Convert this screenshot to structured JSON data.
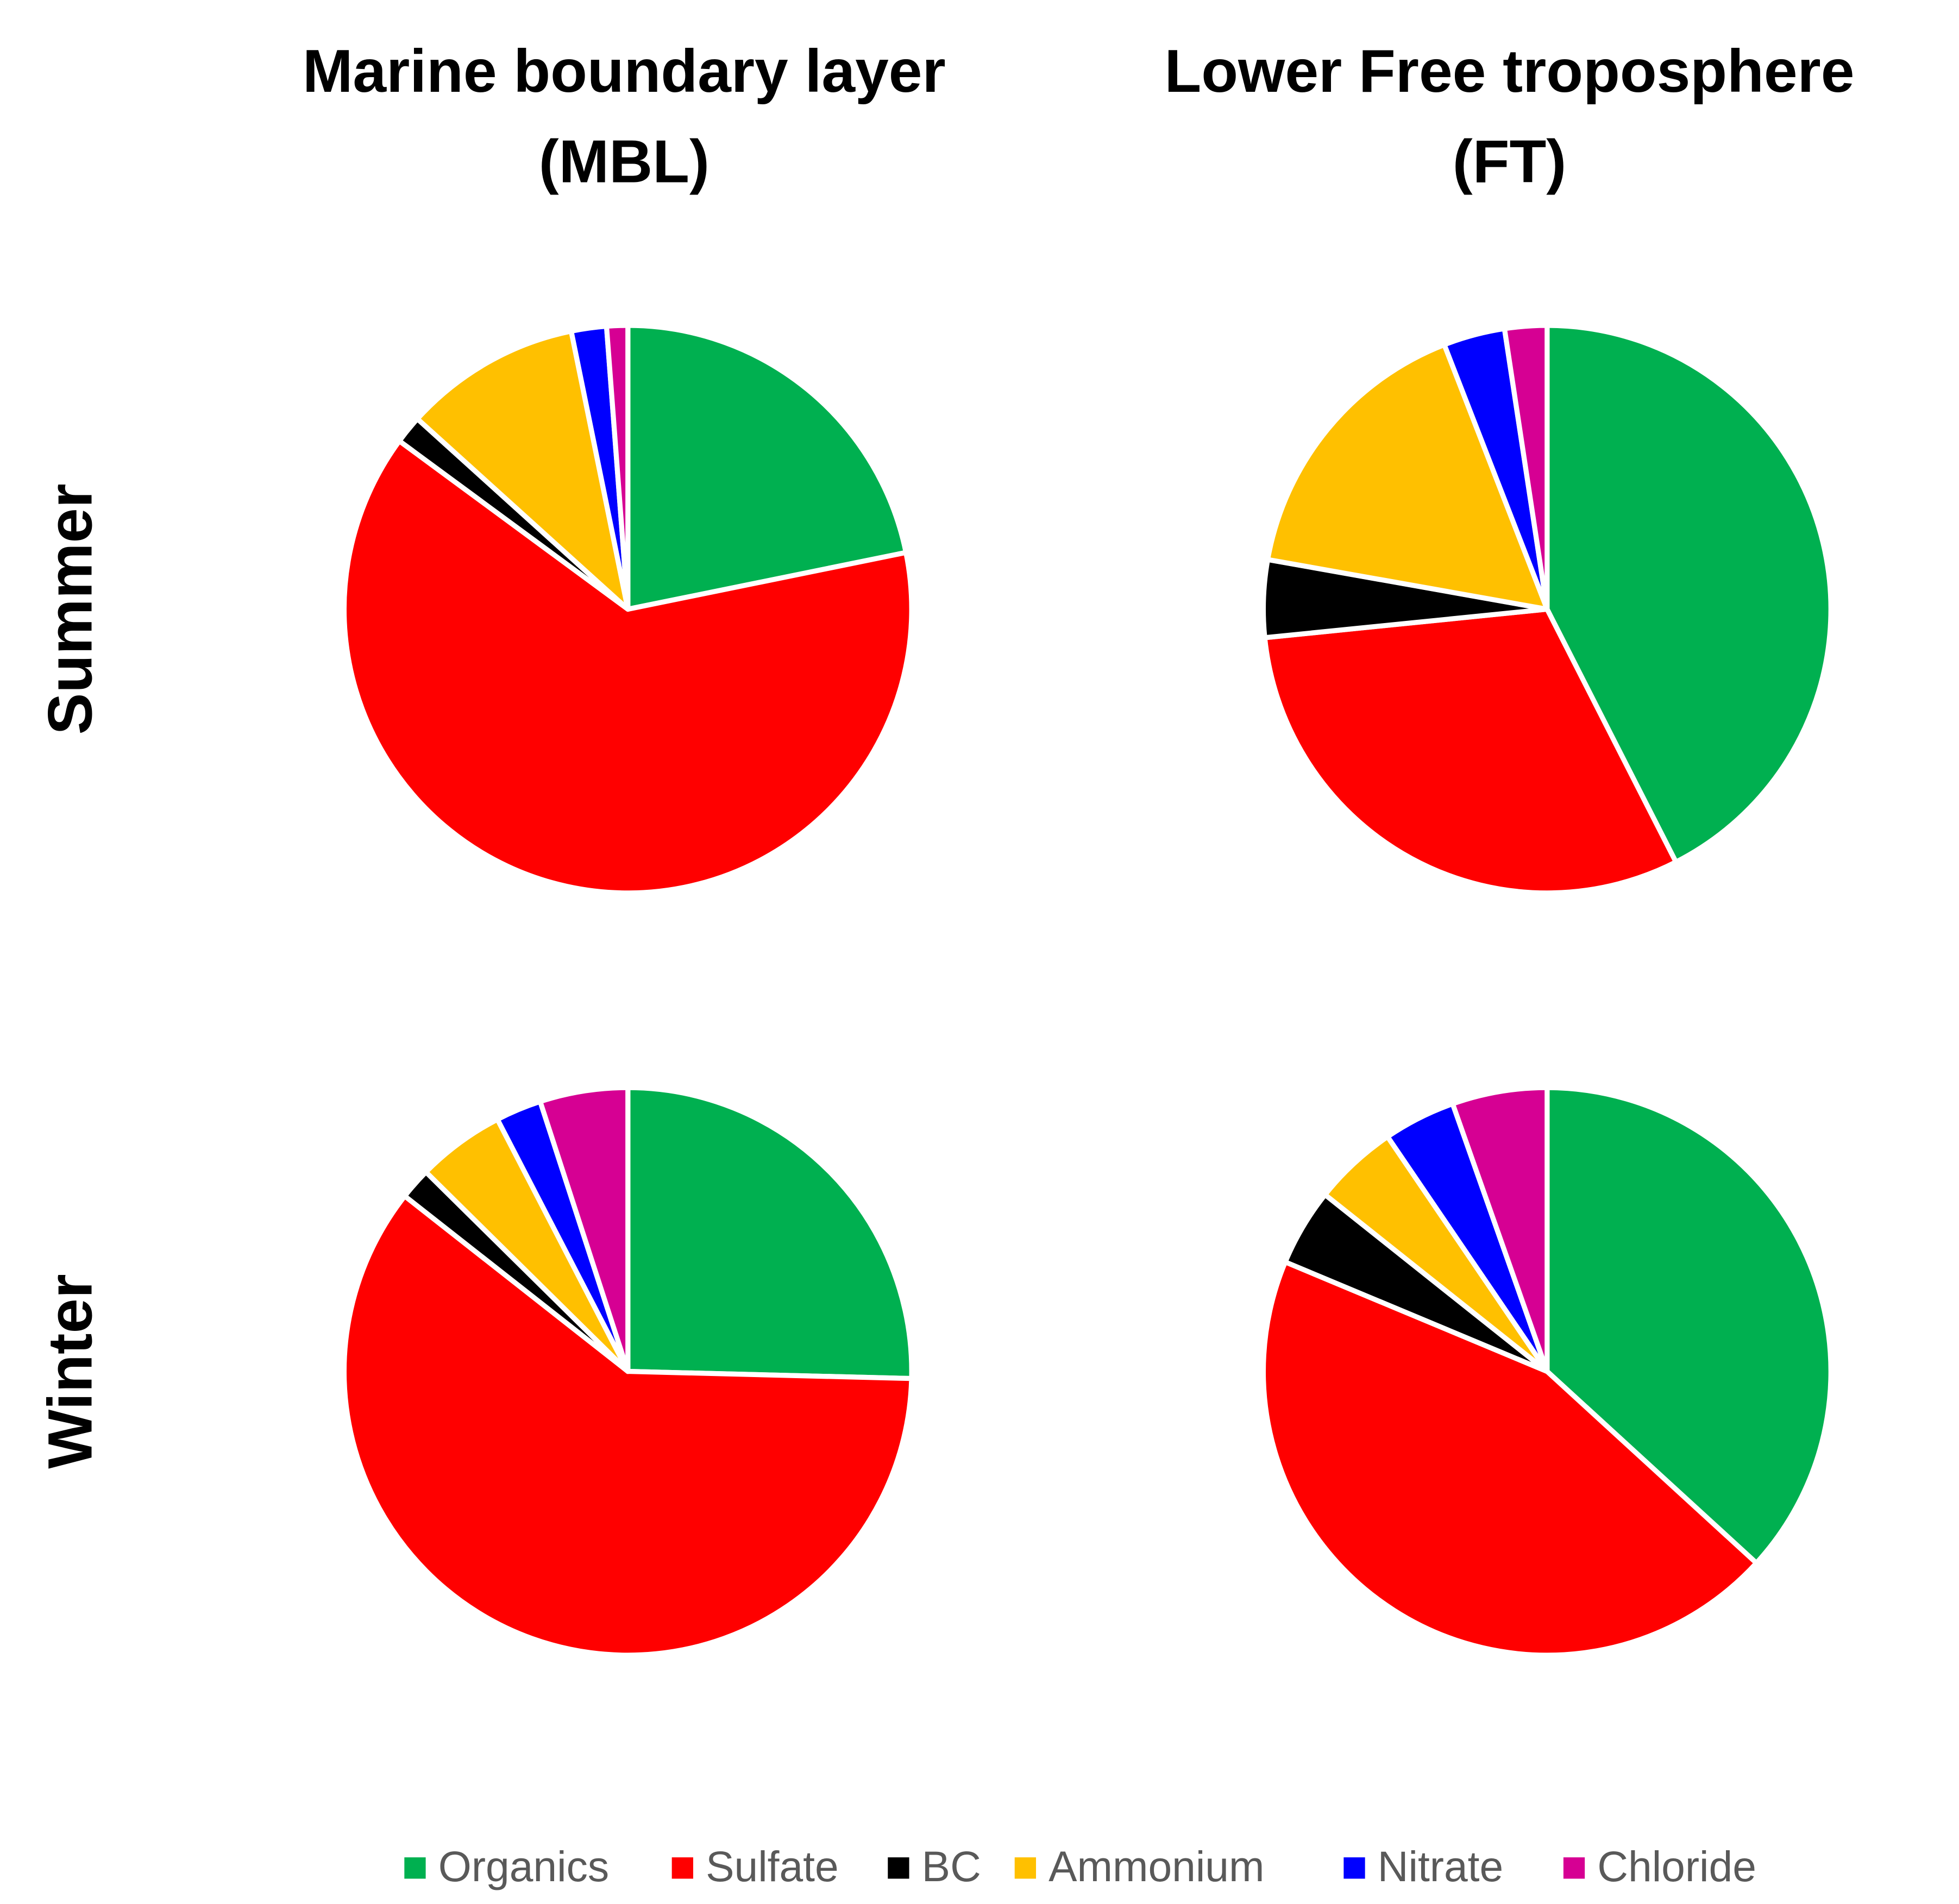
{
  "column_titles": [
    [
      "Marine boundary layer",
      "(MBL)"
    ],
    [
      "Lower Free troposphere",
      "(FT)"
    ]
  ],
  "row_labels": [
    "Summer",
    "Winter"
  ],
  "legend": {
    "categories": [
      "Organics",
      "Sulfate",
      "BC",
      "Ammonium",
      "Nitrate",
      "Chloride"
    ],
    "colors": [
      "#00b050",
      "#ff0000",
      "#000000",
      "#ffc000",
      "#0000ff",
      "#d60093"
    ]
  },
  "chart_data": [
    {
      "type": "pie",
      "values": [
        21.8,
        63.3,
        1.6,
        10.1,
        2.0,
        1.2
      ]
    },
    {
      "type": "pie",
      "values": [
        42.5,
        30.9,
        4.4,
        16.3,
        3.5,
        2.4
      ]
    },
    {
      "type": "pie",
      "values": [
        25.4,
        60.2,
        1.8,
        5.0,
        2.6,
        5.0
      ]
    },
    {
      "type": "pie",
      "values": [
        36.8,
        44.5,
        4.4,
        4.8,
        4.1,
        5.4
      ]
    }
  ]
}
